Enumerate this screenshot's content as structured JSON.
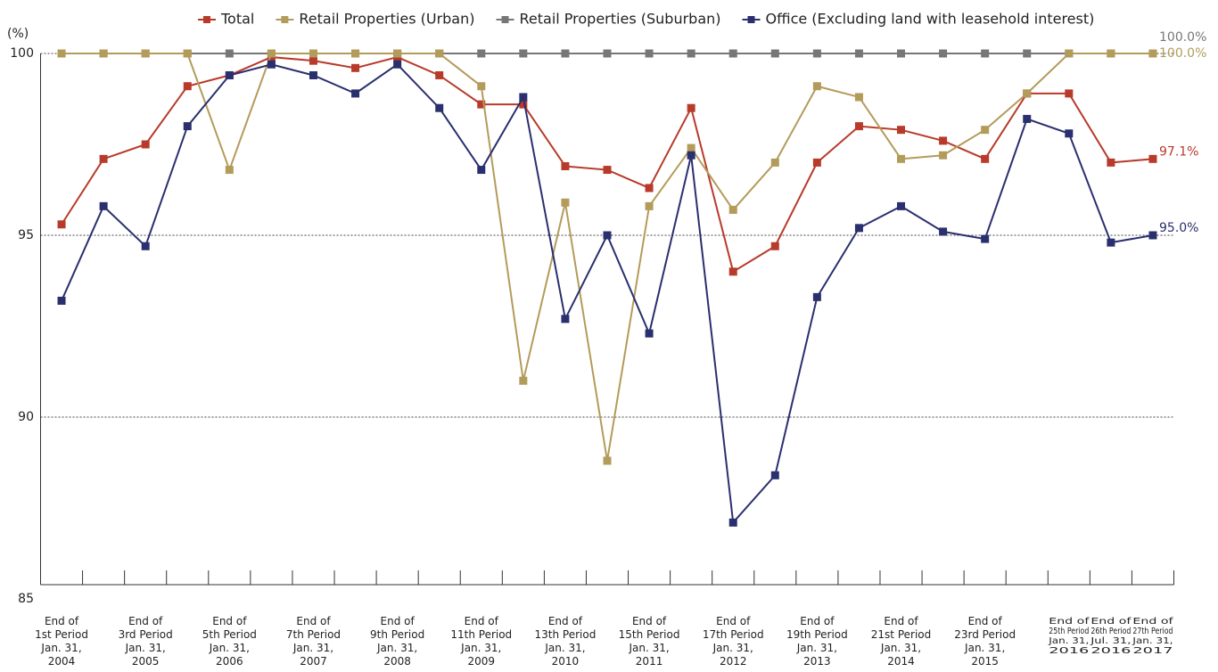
{
  "chart_data": {
    "type": "line",
    "y_axis_label": "(%)",
    "categories": [
      "End of\n1st Period\nJan. 31,\n2004",
      null,
      "End of\n3rd Period\nJan. 31,\n2005",
      null,
      "End of\n5th Period\nJan. 31,\n2006",
      null,
      "End of\n7th Period\nJan. 31,\n2007",
      null,
      "End of\n9th Period\nJan. 31,\n2008",
      null,
      "End of\n11th Period\nJan. 31,\n2009",
      null,
      "End of\n13th Period\nJan. 31,\n2010",
      null,
      "End of\n15th Period\nJan. 31,\n2011",
      null,
      "End of\n17th Period\nJan. 31,\n2012",
      null,
      "End of\n19th Period\nJan. 31,\n2013",
      null,
      "End of\n21st Period\nJan. 31,\n2014",
      null,
      "End of\n23rd Period\nJan. 31,\n2015",
      null,
      "End of\n25th Period\nJan. 31,\n2016",
      "End of\n26th Period\nJul. 31,\n2016",
      "End of\n27th Period\nJan. 31,\n2017"
    ],
    "series": [
      {
        "name": "Total",
        "color": "#b83a2a",
        "values": [
          95.3,
          97.1,
          97.5,
          99.1,
          99.4,
          99.9,
          99.8,
          99.6,
          99.9,
          99.4,
          98.6,
          98.6,
          96.9,
          96.8,
          96.3,
          98.5,
          94.0,
          94.7,
          97.0,
          98.0,
          97.9,
          97.6,
          97.1,
          98.9,
          98.9,
          97.0,
          97.1
        ],
        "value_labels": [
          null,
          null,
          null,
          null,
          null,
          null,
          null,
          null,
          null,
          null,
          null,
          null,
          null,
          null,
          null,
          null,
          null,
          null,
          null,
          null,
          null,
          null,
          null,
          null,
          null,
          null,
          "97.1%"
        ]
      },
      {
        "name": "Retail Properties (Urban)",
        "color": "#b39b5a",
        "values": [
          100,
          100,
          100,
          100,
          96.8,
          100,
          100,
          100,
          100,
          100,
          99.1,
          91.0,
          95.9,
          88.8,
          95.8,
          97.4,
          95.7,
          97.0,
          99.1,
          98.8,
          97.1,
          97.2,
          97.9,
          98.9,
          100,
          100,
          100
        ],
        "value_labels": [
          null,
          null,
          null,
          null,
          null,
          null,
          null,
          null,
          null,
          null,
          null,
          null,
          null,
          null,
          null,
          null,
          null,
          null,
          null,
          null,
          null,
          null,
          null,
          null,
          null,
          null,
          "100.0%"
        ]
      },
      {
        "name": "Retail Properties (Suburban)",
        "color": "#777777",
        "values": [
          100,
          100,
          100,
          100,
          100,
          100,
          100,
          100,
          100,
          100,
          100,
          100,
          100,
          100,
          100,
          100,
          100,
          100,
          100,
          100,
          100,
          100,
          100,
          100,
          100,
          100,
          100
        ],
        "value_labels": [
          null,
          null,
          null,
          null,
          null,
          null,
          null,
          null,
          null,
          null,
          null,
          null,
          null,
          null,
          null,
          null,
          null,
          null,
          null,
          null,
          null,
          null,
          null,
          null,
          null,
          null,
          "100.0%"
        ]
      },
      {
        "name": "Office (Excluding land with leasehold interest)",
        "color": "#2a2f6e",
        "values": [
          93.2,
          95.8,
          94.7,
          98.0,
          99.4,
          99.7,
          99.4,
          98.9,
          99.7,
          98.5,
          96.8,
          98.8,
          92.7,
          95.0,
          92.3,
          97.2,
          87.1,
          88.4,
          93.3,
          95.2,
          95.8,
          95.1,
          94.9,
          98.2,
          97.8,
          94.8,
          95.0
        ],
        "value_labels": [
          null,
          null,
          null,
          null,
          null,
          null,
          null,
          null,
          null,
          null,
          null,
          null,
          null,
          null,
          null,
          null,
          null,
          null,
          null,
          null,
          null,
          null,
          null,
          null,
          null,
          null,
          "95.0%"
        ]
      }
    ],
    "ylim": [
      85,
      100
    ],
    "yticks": [
      85,
      90,
      95,
      100
    ],
    "grid": true,
    "legend": "top"
  }
}
